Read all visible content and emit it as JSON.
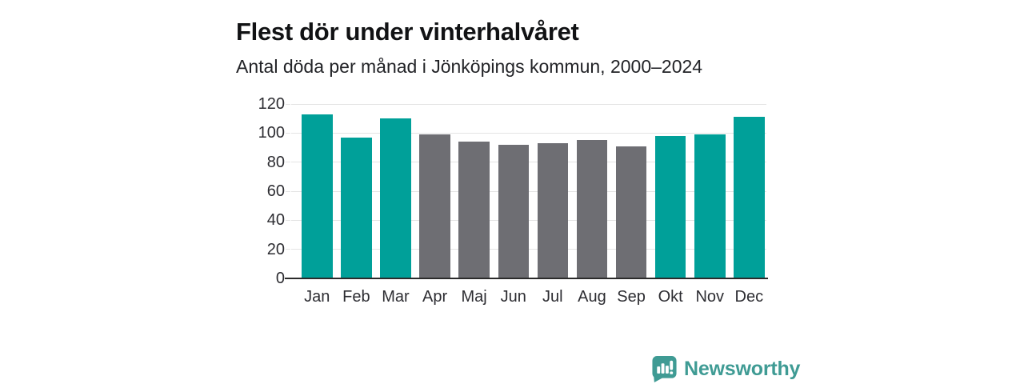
{
  "chart_data": {
    "type": "bar",
    "title": "Flest dör under vinterhalvåret",
    "subtitle": "Antal döda per månad i Jönköpings kommun, 2000–2024",
    "categories": [
      "Jan",
      "Feb",
      "Mar",
      "Apr",
      "Maj",
      "Jun",
      "Jul",
      "Aug",
      "Sep",
      "Okt",
      "Nov",
      "Dec"
    ],
    "values": [
      113,
      97,
      110,
      99,
      94,
      92,
      93,
      95,
      91,
      98,
      99,
      111
    ],
    "bar_color_keys": [
      "highlight",
      "highlight",
      "highlight",
      "muted",
      "muted",
      "muted",
      "muted",
      "muted",
      "muted",
      "highlight",
      "highlight",
      "highlight"
    ],
    "xlabel": "",
    "ylabel": "",
    "ylim": [
      0,
      120
    ],
    "yticks": [
      0,
      20,
      40,
      60,
      80,
      100,
      120
    ],
    "grid": true,
    "legend": "none",
    "colors": {
      "highlight": "#00a099",
      "muted": "#6e6e73",
      "gridline": "#e4e4e4",
      "axis": "#2b2b2b",
      "tick_text": "#2d2d32"
    }
  },
  "branding": {
    "logo_text": "Newsworthy",
    "logo_color": "#3f9b94",
    "logo_icon": "speech-bubble-bar-chart"
  }
}
